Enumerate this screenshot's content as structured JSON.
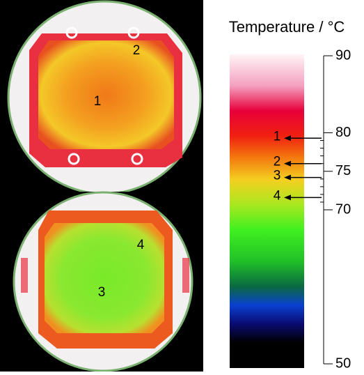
{
  "chart_data": {
    "type": "colorbar",
    "title": "Temperature / °C",
    "ylim": [
      50,
      90
    ],
    "yticks": [
      50,
      70,
      75,
      80,
      90
    ],
    "minor_yticks": [
      71,
      72,
      73,
      74,
      76,
      77,
      78,
      79
    ],
    "points": [
      {
        "label": "1",
        "value": 79.3
      },
      {
        "label": "2",
        "value": 76.0
      },
      {
        "label": "3",
        "value": 74.2
      },
      {
        "label": "4",
        "value": 71.6
      }
    ]
  }
}
